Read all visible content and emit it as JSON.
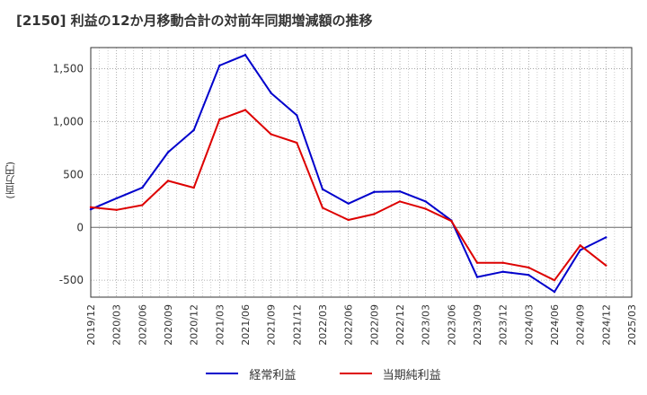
{
  "chart_data": {
    "type": "line",
    "title": "[2150]  利益の12か月移動合計の対前年同期増減額の推移",
    "ylabel": "(百万円)",
    "xlabel": "",
    "categories": [
      "2019/12",
      "2020/03",
      "2020/06",
      "2020/09",
      "2020/12",
      "2021/03",
      "2021/06",
      "2021/09",
      "2021/12",
      "2022/03",
      "2022/06",
      "2022/09",
      "2022/12",
      "2023/03",
      "2023/06",
      "2023/09",
      "2023/12",
      "2024/03",
      "2024/06",
      "2024/09",
      "2024/12",
      "2025/03"
    ],
    "yticks": [
      -500,
      0,
      500,
      1000,
      1500
    ],
    "ytick_labels": [
      "-500",
      "0",
      "500",
      "1,000",
      "1,500"
    ],
    "ylim": [
      -660,
      1700
    ],
    "grid": true,
    "series": [
      {
        "name": "経常利益",
        "color": "#0000cc",
        "values": [
          170,
          275,
          375,
          710,
          920,
          1530,
          1630,
          1270,
          1060,
          360,
          225,
          335,
          340,
          245,
          65,
          -470,
          -420,
          -450,
          -610,
          -215,
          -95,
          null
        ]
      },
      {
        "name": "当期純利益",
        "color": "#dd0000",
        "values": [
          190,
          165,
          210,
          440,
          375,
          1020,
          1110,
          880,
          800,
          185,
          70,
          125,
          245,
          175,
          60,
          -335,
          -335,
          -380,
          -500,
          -170,
          -360,
          null
        ]
      }
    ]
  }
}
